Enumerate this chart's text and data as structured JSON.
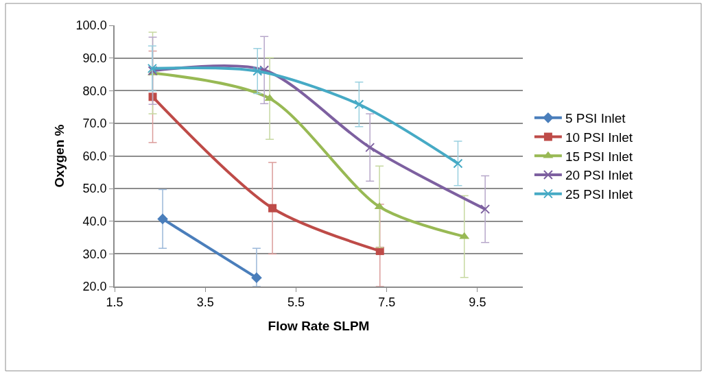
{
  "chart_data": {
    "type": "line",
    "xlabel": "Flow Rate SLPM",
    "ylabel": "Oxygen %",
    "xlim": [
      1.5,
      10.5
    ],
    "xticks": [
      1.5,
      3.5,
      5.5,
      7.5,
      9.5
    ],
    "ylim": [
      20,
      100
    ],
    "yticks": [
      {
        "value": 20,
        "label": "20.0"
      },
      {
        "value": 30,
        "label": "30.0"
      },
      {
        "value": 40,
        "label": "40.0"
      },
      {
        "value": 50,
        "label": "50.0"
      },
      {
        "value": 60,
        "label": "60.0"
      },
      {
        "value": 70,
        "label": "70.0"
      },
      {
        "value": 80,
        "label": "80.0"
      },
      {
        "value": 90,
        "label": "90.0"
      },
      {
        "value": 100,
        "label": "100.0"
      }
    ],
    "grid": "y",
    "legend": "right",
    "line_style": "solid",
    "series": [
      {
        "name": "5 PSI Inlet",
        "color": "#4a7ebb",
        "marker": "diamond",
        "x": [
          2.56,
          4.63
        ],
        "values": [
          40.7,
          22.7
        ],
        "errors": [
          9,
          [
            20,
            31.7
          ]
        ]
      },
      {
        "name": "10 PSI Inlet",
        "color": "#be4b48",
        "marker": "square",
        "x": [
          2.34,
          4.98,
          7.35
        ],
        "values": [
          78.1,
          44.0,
          30.9
        ],
        "errors": [
          14,
          14,
          [
            20,
            45.2
          ]
        ]
      },
      {
        "name": "15 PSI Inlet",
        "color": "#98b954",
        "marker": "triangle",
        "x": [
          2.34,
          4.92,
          7.34,
          9.21
        ],
        "values": [
          85.4,
          77.6,
          44.4,
          35.3
        ],
        "errors": [
          12.5,
          12.5,
          12.5,
          12.5
        ]
      },
      {
        "name": "20 PSI Inlet",
        "color": "#7d60a0",
        "marker": "cross",
        "x": [
          2.34,
          4.8,
          7.13,
          9.67
        ],
        "values": [
          86.1,
          86.3,
          62.6,
          43.7
        ],
        "errors": [
          10.3,
          10.3,
          10.3,
          10.2
        ]
      },
      {
        "name": "25 PSI Inlet",
        "color": "#46aac5",
        "marker": "cross",
        "x": [
          2.33,
          4.65,
          6.89,
          9.07
        ],
        "values": [
          86.8,
          86.0,
          75.8,
          57.7
        ],
        "errors": [
          6.9,
          6.9,
          6.8,
          6.8
        ]
      }
    ]
  }
}
